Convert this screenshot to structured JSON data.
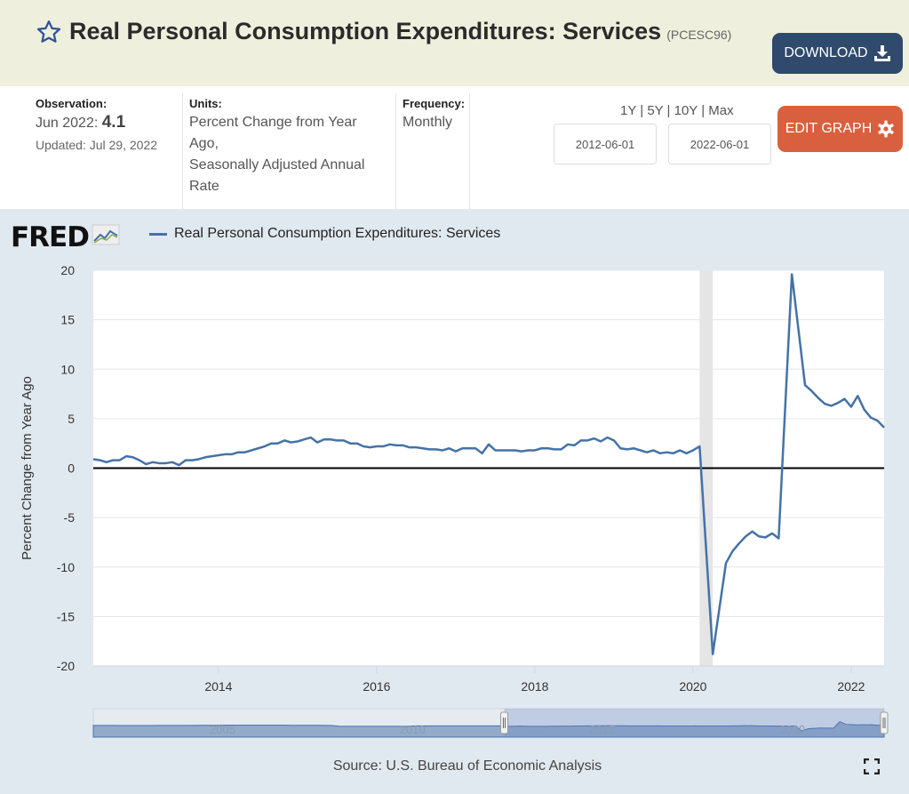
{
  "header": {
    "title": "Real Personal Consumption Expenditures: Services",
    "series_id": "(PCESC96)",
    "download_label": "DOWNLOAD",
    "star_icon": "star-outline-icon",
    "download_icon": "download-icon"
  },
  "meta": {
    "observation_label": "Observation:",
    "observation_date": "Jun 2022:",
    "observation_value": "4.1",
    "updated": "Updated: Jul 29, 2022",
    "units_label": "Units:",
    "units_line1": "Percent Change from Year",
    "units_line2": "Ago,",
    "units_line3": "Seasonally Adjusted Annual",
    "units_line4": "Rate",
    "frequency_label": "Frequency:",
    "frequency_value": "Monthly",
    "ranges": [
      "1Y",
      "5Y",
      "10Y",
      "Max"
    ],
    "start_date": "2012-06-01",
    "end_date": "2022-06-01",
    "edit_label": "EDIT GRAPH",
    "edit_icon": "gear-icon"
  },
  "graph": {
    "logo": "FRED",
    "source": "Source: U.S. Bureau of Economic Analysis",
    "colors": {
      "line": "#4572a7",
      "recession": "#e5e5e5",
      "zero": "#000000"
    }
  },
  "chart_data": {
    "type": "line",
    "title": "",
    "legend": [
      "Real Personal Consumption Expenditures: Services"
    ],
    "legend_placement": "top-left",
    "xlabel": "",
    "ylabel": "Percent Change from Year Ago",
    "start": "2012-06",
    "frequency": "monthly",
    "xlim": [
      "2012-06",
      "2022-06"
    ],
    "ylim": [
      -20,
      20
    ],
    "yticks": [
      -20,
      -15,
      -10,
      -5,
      0,
      5,
      10,
      15,
      20
    ],
    "ytick_labels": [
      "-20",
      "-15",
      "-10",
      "-5",
      "0",
      "5",
      "10",
      "15",
      "20"
    ],
    "xticks": [
      2014,
      2016,
      2018,
      2020,
      2022
    ],
    "xtick_labels": [
      "2014",
      "2016",
      "2018",
      "2020",
      "2022"
    ],
    "grid": true,
    "recession": [
      "2020-02",
      "2020-04"
    ],
    "series": [
      {
        "name": "Real Personal Consumption Expenditures: Services",
        "values": [
          0.9,
          0.8,
          0.6,
          0.8,
          0.8,
          1.2,
          1.1,
          0.8,
          0.4,
          0.6,
          0.5,
          0.5,
          0.6,
          0.3,
          0.8,
          0.8,
          0.9,
          1.1,
          1.2,
          1.3,
          1.4,
          1.4,
          1.6,
          1.6,
          1.8,
          2.0,
          2.2,
          2.5,
          2.5,
          2.8,
          2.6,
          2.7,
          2.9,
          3.1,
          2.6,
          2.9,
          2.9,
          2.8,
          2.8,
          2.5,
          2.5,
          2.2,
          2.1,
          2.2,
          2.2,
          2.4,
          2.3,
          2.3,
          2.1,
          2.1,
          2.0,
          1.9,
          1.9,
          1.8,
          2.0,
          1.7,
          2.0,
          2.0,
          2.0,
          1.5,
          2.4,
          1.8,
          1.8,
          1.8,
          1.8,
          1.7,
          1.8,
          1.8,
          2.0,
          2.0,
          1.9,
          1.9,
          2.4,
          2.3,
          2.8,
          2.8,
          3.0,
          2.7,
          3.1,
          2.8,
          2.0,
          1.9,
          2.0,
          1.8,
          1.6,
          1.8,
          1.5,
          1.6,
          1.5,
          1.8,
          1.5,
          1.8,
          2.2,
          -8.3,
          -18.8,
          -14.2,
          -9.6,
          -8.4,
          -7.6,
          -6.9,
          -6.4,
          -6.9,
          -7.0,
          -6.6,
          -7.1,
          6.3,
          19.6,
          14.0,
          8.4,
          7.8,
          7.1,
          6.5,
          6.3,
          6.6,
          7.0,
          6.2,
          7.3,
          5.9,
          5.1,
          4.8,
          4.1
        ]
      }
    ],
    "navigator": {
      "labels": [
        "2005",
        "2010",
        "2015",
        "2020"
      ],
      "selected_range": [
        "2012-06",
        "2022-06"
      ]
    }
  }
}
